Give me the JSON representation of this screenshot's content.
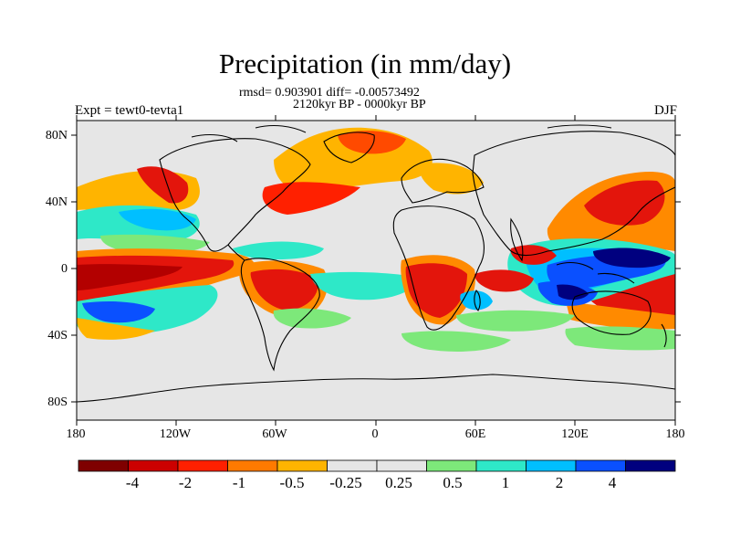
{
  "title": "Precipitation (in mm/day)",
  "stats_line": "rmsd= 0.903901 diff= -0.00573492",
  "period_line": "2120kyr BP - 0000kyr BP",
  "experiment_label": "Expt = tewt0-tevta1",
  "season_label": "DJF",
  "lat_ticks": [
    "80N",
    "40N",
    "0",
    "40S",
    "80S"
  ],
  "lon_ticks": [
    "180",
    "120W",
    "60W",
    "0",
    "60E",
    "120E",
    "180"
  ],
  "colorbar": {
    "colors": [
      "#7f0000",
      "#cc0000",
      "#ff2000",
      "#ff7a00",
      "#ffb400",
      "#e6e6e6",
      "#e6e6e6",
      "#7de87a",
      "#2ee8c8",
      "#00bfff",
      "#0a50ff",
      "#00007f"
    ],
    "labels": [
      "-4",
      "-2",
      "-1",
      "-0.5",
      "-0.25",
      "0.25",
      "0.5",
      "1",
      "2",
      "4"
    ]
  },
  "palette": {
    "background": "#e6e6e6",
    "dark_red": "#b30000",
    "red": "#e3150c",
    "orange_red": "#ff4a00",
    "orange": "#ff8a00",
    "yellow_orange": "#ffb400",
    "green": "#7de87a",
    "cyan": "#2ee8c8",
    "light_blue": "#00bfff",
    "blue": "#0a50ff",
    "dark_blue": "#00007f"
  }
}
